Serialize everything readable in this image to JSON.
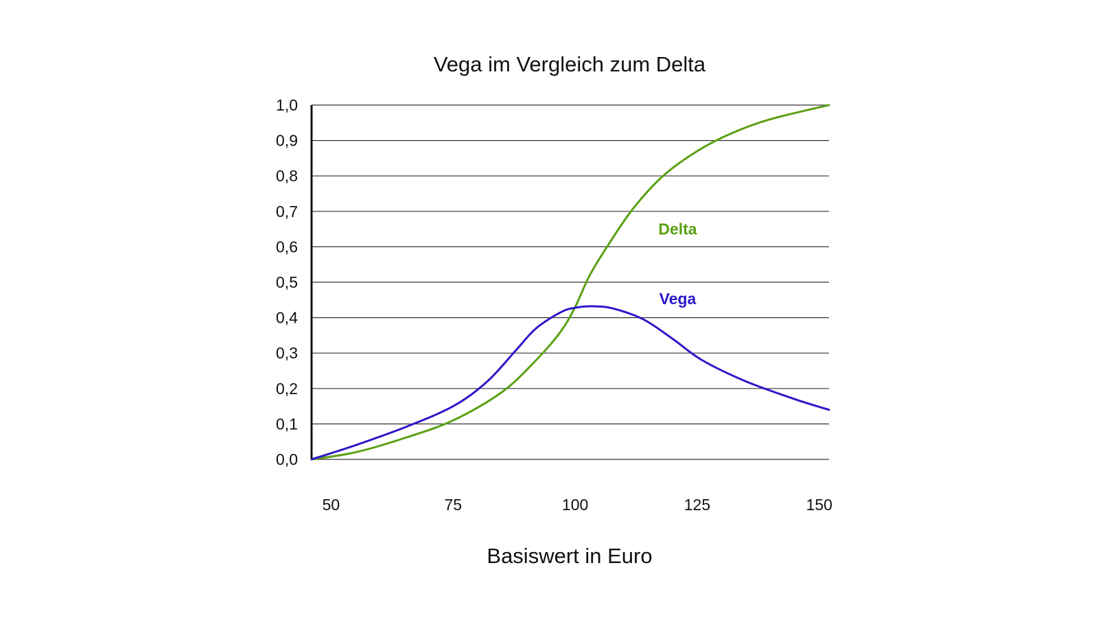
{
  "chart_data": {
    "type": "line",
    "title": "Vega im Vergleich zum Delta",
    "xlabel": "Basiswert in Euro",
    "ylabel": "",
    "xlim": [
      46,
      152
    ],
    "ylim": [
      0,
      1
    ],
    "x_ticks": [
      50,
      75,
      100,
      125,
      150
    ],
    "x_tick_labels": [
      "50",
      "75",
      "100",
      "125",
      "150"
    ],
    "y_ticks": [
      0,
      0.1,
      0.2,
      0.3,
      0.4,
      0.5,
      0.6,
      0.7,
      0.8,
      0.9,
      1.0
    ],
    "y_tick_labels": [
      "0,0",
      "0,1",
      "0,2",
      "0,3",
      "0,4",
      "0,5",
      "0,6",
      "0,7",
      "0,8",
      "0,9",
      "1,0"
    ],
    "grid": true,
    "legend": "inline labels",
    "series": [
      {
        "name": "Delta",
        "color": "#5aa012",
        "x": [
          46,
          55,
          65,
          75,
          85,
          92,
          97,
          100,
          103,
          107,
          112,
          118,
          125,
          132,
          140,
          152
        ],
        "y": [
          0.0,
          0.02,
          0.06,
          0.11,
          0.19,
          0.28,
          0.36,
          0.43,
          0.52,
          0.61,
          0.71,
          0.8,
          0.87,
          0.92,
          0.96,
          1.0
        ]
      },
      {
        "name": "Vega",
        "color": "#2e17c9",
        "x": [
          46,
          55,
          65,
          75,
          82,
          88,
          92,
          97,
          100,
          104,
          108,
          114,
          120,
          126,
          135,
          145,
          152
        ],
        "y": [
          0.0,
          0.04,
          0.09,
          0.15,
          0.22,
          0.31,
          0.37,
          0.415,
          0.428,
          0.432,
          0.425,
          0.395,
          0.34,
          0.28,
          0.22,
          0.17,
          0.14
        ]
      }
    ]
  }
}
